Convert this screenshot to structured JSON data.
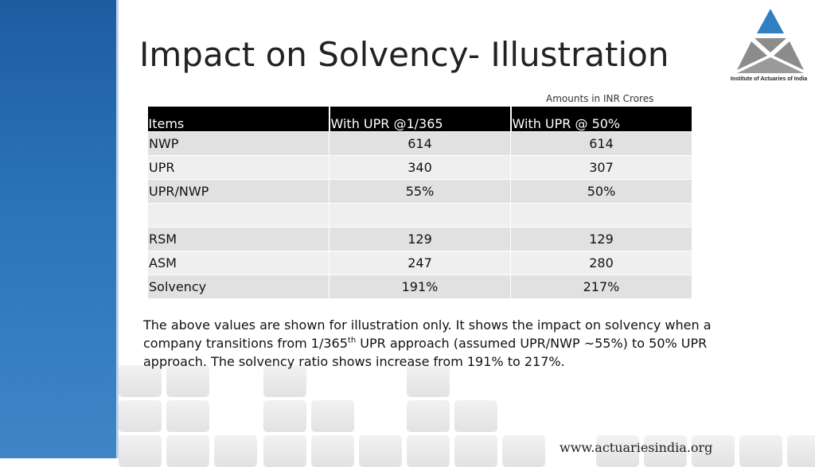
{
  "slide": {
    "title": "Impact on Solvency- Illustration",
    "amounts_note": "Amounts in INR Crores",
    "logo": {
      "icon": "iai-triangle-logo-icon",
      "caption": "Institute of Actuaries of India",
      "colors": {
        "top": "#2f7fc1",
        "bottom": "#8a8a8a"
      }
    },
    "website": "www.actuariesindia.org",
    "sidebar_color": "#2a6fb3"
  },
  "table": {
    "headers": [
      "Items",
      "With UPR @1/365",
      "With UPR @ 50%"
    ],
    "rows": [
      {
        "item": "NWP",
        "a": "614",
        "b": "614"
      },
      {
        "item": "UPR",
        "a": "340",
        "b": "307"
      },
      {
        "item": "UPR/NWP",
        "a": "55%",
        "b": "50%"
      },
      {
        "item": "",
        "a": "",
        "b": ""
      },
      {
        "item": "RSM",
        "a": "129",
        "b": "129"
      },
      {
        "item": "ASM",
        "a": "247",
        "b": "280"
      },
      {
        "item": "Solvency",
        "a": "191%",
        "b": "217%"
      }
    ]
  },
  "explanation": {
    "part1": "The above values are shown for illustration only. It shows the impact on solvency when a company transitions from 1/365",
    "sup": "th",
    "part2": " UPR approach (assumed UPR/NWP ~55%) to 50%  UPR approach. The solvency ratio shows increase from 191% to 217%."
  }
}
